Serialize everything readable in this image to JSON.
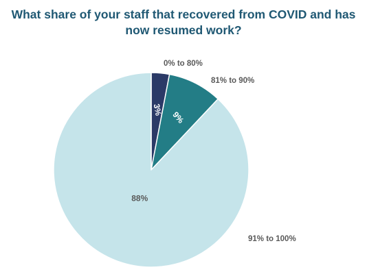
{
  "chart_data": {
    "type": "pie",
    "title": "What share of your staff that recovered from COVID and has now resumed work?",
    "categories": [
      "0% to 80%",
      "81% to 90%",
      "91% to 100%"
    ],
    "values": [
      3,
      9,
      88
    ],
    "value_labels": [
      "3%",
      "9%",
      "88%"
    ],
    "colors": [
      "#2b3a67",
      "#237d86",
      "#c5e4ea"
    ],
    "label_colors": [
      "#ffffff",
      "#ffffff",
      "#595959"
    ],
    "start_angle": "12 o'clock",
    "direction": "clockwise",
    "legend": "none (category labels beside slices)"
  }
}
